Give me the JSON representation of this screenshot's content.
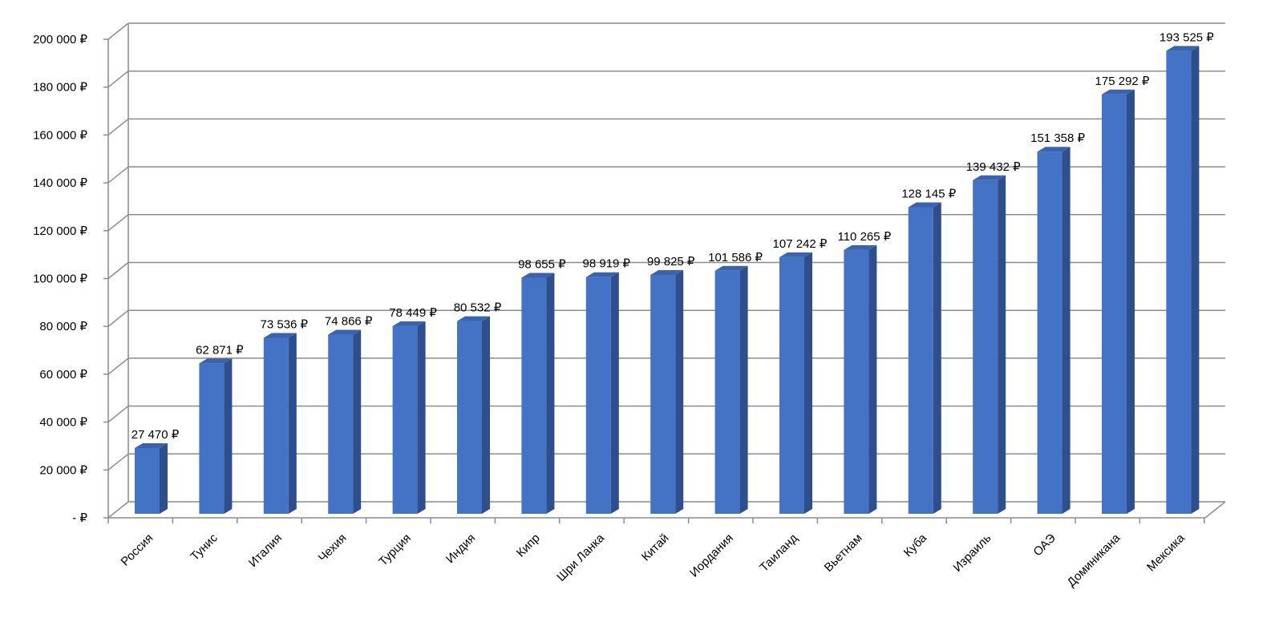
{
  "chart_data": {
    "type": "bar",
    "style": "3d-column",
    "categories": [
      "Россия",
      "Тунис",
      "Италия",
      "Чехия",
      "Турция",
      "Индия",
      "Кипр",
      "Шри Ланка",
      "Китай",
      "Иордания",
      "Таиланд",
      "Вьетнам",
      "Куба",
      "Израиль",
      "ОАЭ",
      "Доминикана",
      "Мексика"
    ],
    "values": [
      27470,
      62871,
      73536,
      74866,
      78449,
      80532,
      98655,
      98919,
      99825,
      101586,
      107242,
      110265,
      128145,
      139432,
      151358,
      175292,
      193525
    ],
    "data_labels": [
      "27 470 ₽",
      "62 871 ₽",
      "73 536 ₽",
      "74 866 ₽",
      "78 449 ₽",
      "80 532 ₽",
      "98 655 ₽",
      "98 919 ₽",
      "99 825 ₽",
      "101 586 ₽",
      "107 242 ₽",
      "110 265 ₽",
      "128 145 ₽",
      "139 432 ₽",
      "151 358 ₽",
      "175 292 ₽",
      "193 525 ₽"
    ],
    "y_ticks": [
      0,
      20000,
      40000,
      60000,
      80000,
      100000,
      120000,
      140000,
      160000,
      180000,
      200000
    ],
    "y_tick_labels": [
      "-  ₽",
      "20 000 ₽",
      "40 000 ₽",
      "60 000 ₽",
      "80 000 ₽",
      "100 000 ₽",
      "120 000 ₽",
      "140 000 ₽",
      "160 000 ₽",
      "180 000 ₽",
      "200 000 ₽"
    ],
    "ylim": [
      0,
      200000
    ],
    "grid": true,
    "legend": "none",
    "colors": {
      "bar_front": "#4472C4",
      "bar_side": "#2E4F8E",
      "bar_top": "#3A62AD",
      "grid": "#8C8C8C"
    }
  }
}
